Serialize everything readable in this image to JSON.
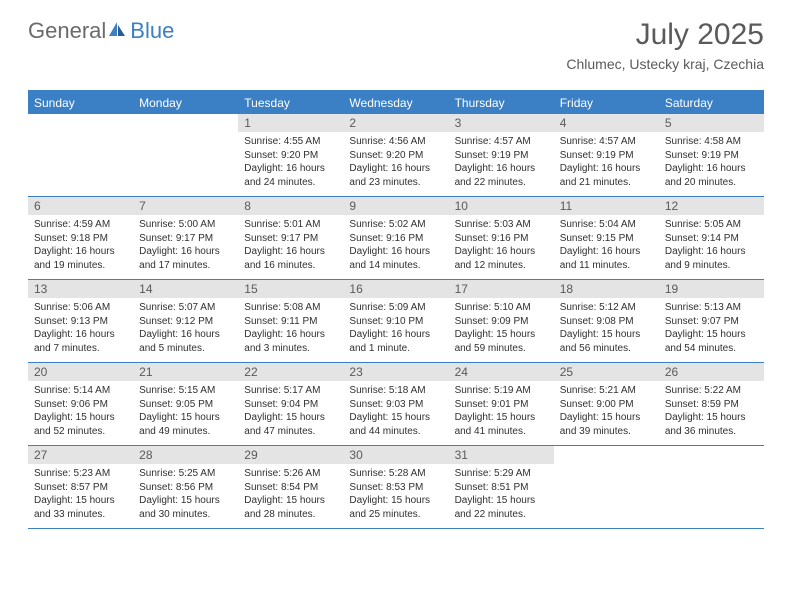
{
  "logo": {
    "general": "General",
    "blue": "Blue"
  },
  "title": "July 2025",
  "location": "Chlumec, Ustecky kraj, Czechia",
  "colors": {
    "header_blue": "#3b7fc4",
    "daynum_bg": "#e4e4e4",
    "text_gray": "#5a5a5a",
    "body_text": "#303030"
  },
  "weekdays": [
    "Sunday",
    "Monday",
    "Tuesday",
    "Wednesday",
    "Thursday",
    "Friday",
    "Saturday"
  ],
  "weeks": [
    [
      null,
      null,
      {
        "n": "1",
        "sr": "4:55 AM",
        "ss": "9:20 PM",
        "dl": "16 hours and 24 minutes."
      },
      {
        "n": "2",
        "sr": "4:56 AM",
        "ss": "9:20 PM",
        "dl": "16 hours and 23 minutes."
      },
      {
        "n": "3",
        "sr": "4:57 AM",
        "ss": "9:19 PM",
        "dl": "16 hours and 22 minutes."
      },
      {
        "n": "4",
        "sr": "4:57 AM",
        "ss": "9:19 PM",
        "dl": "16 hours and 21 minutes."
      },
      {
        "n": "5",
        "sr": "4:58 AM",
        "ss": "9:19 PM",
        "dl": "16 hours and 20 minutes."
      }
    ],
    [
      {
        "n": "6",
        "sr": "4:59 AM",
        "ss": "9:18 PM",
        "dl": "16 hours and 19 minutes."
      },
      {
        "n": "7",
        "sr": "5:00 AM",
        "ss": "9:17 PM",
        "dl": "16 hours and 17 minutes."
      },
      {
        "n": "8",
        "sr": "5:01 AM",
        "ss": "9:17 PM",
        "dl": "16 hours and 16 minutes."
      },
      {
        "n": "9",
        "sr": "5:02 AM",
        "ss": "9:16 PM",
        "dl": "16 hours and 14 minutes."
      },
      {
        "n": "10",
        "sr": "5:03 AM",
        "ss": "9:16 PM",
        "dl": "16 hours and 12 minutes."
      },
      {
        "n": "11",
        "sr": "5:04 AM",
        "ss": "9:15 PM",
        "dl": "16 hours and 11 minutes."
      },
      {
        "n": "12",
        "sr": "5:05 AM",
        "ss": "9:14 PM",
        "dl": "16 hours and 9 minutes."
      }
    ],
    [
      {
        "n": "13",
        "sr": "5:06 AM",
        "ss": "9:13 PM",
        "dl": "16 hours and 7 minutes."
      },
      {
        "n": "14",
        "sr": "5:07 AM",
        "ss": "9:12 PM",
        "dl": "16 hours and 5 minutes."
      },
      {
        "n": "15",
        "sr": "5:08 AM",
        "ss": "9:11 PM",
        "dl": "16 hours and 3 minutes."
      },
      {
        "n": "16",
        "sr": "5:09 AM",
        "ss": "9:10 PM",
        "dl": "16 hours and 1 minute."
      },
      {
        "n": "17",
        "sr": "5:10 AM",
        "ss": "9:09 PM",
        "dl": "15 hours and 59 minutes."
      },
      {
        "n": "18",
        "sr": "5:12 AM",
        "ss": "9:08 PM",
        "dl": "15 hours and 56 minutes."
      },
      {
        "n": "19",
        "sr": "5:13 AM",
        "ss": "9:07 PM",
        "dl": "15 hours and 54 minutes."
      }
    ],
    [
      {
        "n": "20",
        "sr": "5:14 AM",
        "ss": "9:06 PM",
        "dl": "15 hours and 52 minutes."
      },
      {
        "n": "21",
        "sr": "5:15 AM",
        "ss": "9:05 PM",
        "dl": "15 hours and 49 minutes."
      },
      {
        "n": "22",
        "sr": "5:17 AM",
        "ss": "9:04 PM",
        "dl": "15 hours and 47 minutes."
      },
      {
        "n": "23",
        "sr": "5:18 AM",
        "ss": "9:03 PM",
        "dl": "15 hours and 44 minutes."
      },
      {
        "n": "24",
        "sr": "5:19 AM",
        "ss": "9:01 PM",
        "dl": "15 hours and 41 minutes."
      },
      {
        "n": "25",
        "sr": "5:21 AM",
        "ss": "9:00 PM",
        "dl": "15 hours and 39 minutes."
      },
      {
        "n": "26",
        "sr": "5:22 AM",
        "ss": "8:59 PM",
        "dl": "15 hours and 36 minutes."
      }
    ],
    [
      {
        "n": "27",
        "sr": "5:23 AM",
        "ss": "8:57 PM",
        "dl": "15 hours and 33 minutes."
      },
      {
        "n": "28",
        "sr": "5:25 AM",
        "ss": "8:56 PM",
        "dl": "15 hours and 30 minutes."
      },
      {
        "n": "29",
        "sr": "5:26 AM",
        "ss": "8:54 PM",
        "dl": "15 hours and 28 minutes."
      },
      {
        "n": "30",
        "sr": "5:28 AM",
        "ss": "8:53 PM",
        "dl": "15 hours and 25 minutes."
      },
      {
        "n": "31",
        "sr": "5:29 AM",
        "ss": "8:51 PM",
        "dl": "15 hours and 22 minutes."
      },
      null,
      null
    ]
  ],
  "labels": {
    "sunrise": "Sunrise:",
    "sunset": "Sunset:",
    "daylight": "Daylight:"
  }
}
